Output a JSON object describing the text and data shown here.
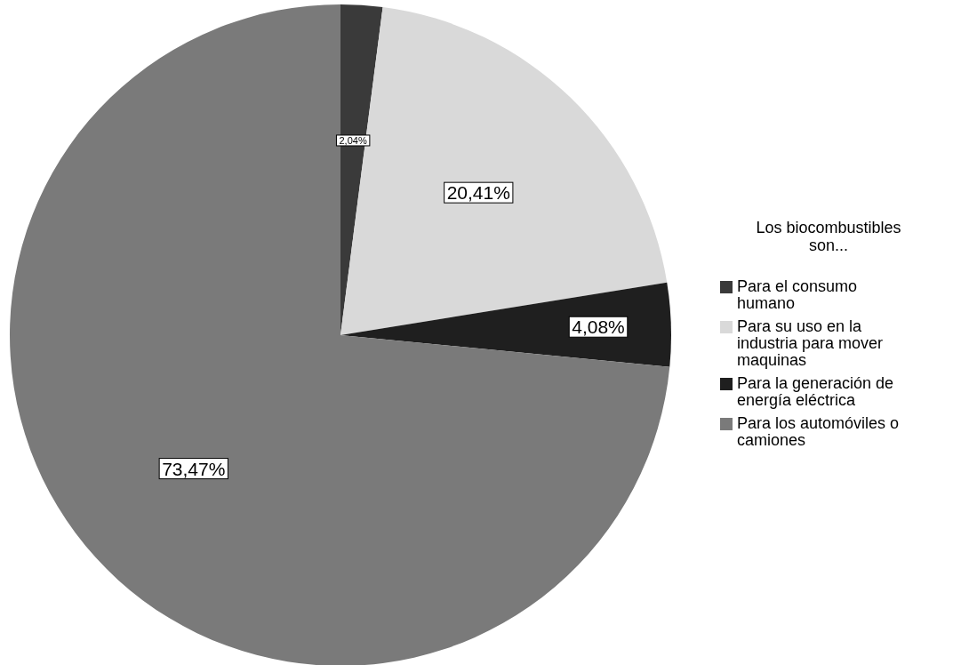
{
  "chart_data": {
    "type": "pie",
    "legend_title": "Los biocombustibles son...",
    "categories": [
      "Para el consumo humano",
      "Para su uso en la industria para mover maquinas",
      "Para la generación de energía eléctrica",
      "Para los automóviles o camiones"
    ],
    "values": [
      2.04,
      20.41,
      4.08,
      73.47
    ],
    "colors": [
      "#3a3a3a",
      "#d9d9d9",
      "#1f1f1f",
      "#7a7a7a"
    ],
    "value_labels": [
      "2,04%",
      "20,41%",
      "4,08%",
      "73,47%"
    ],
    "legend": "right"
  }
}
